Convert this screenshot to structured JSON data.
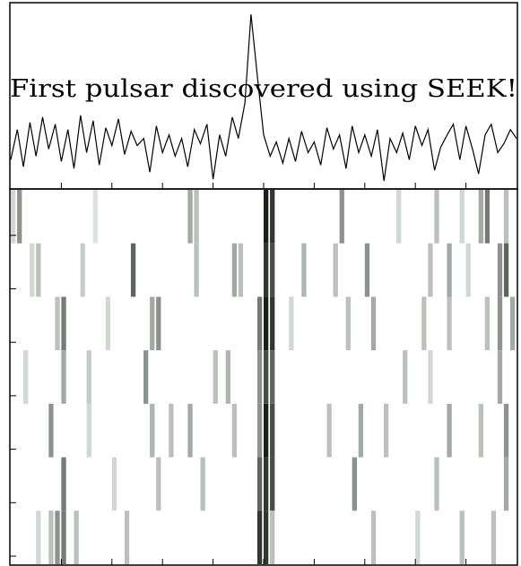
{
  "chart_data": [
    {
      "type": "line",
      "title": "First pulsar discovered using SEEK!",
      "xlabel": "",
      "ylabel": "",
      "xlim": [
        0,
        1
      ],
      "ylim": [
        0,
        1
      ],
      "x": [
        0.0,
        0.013,
        0.025,
        0.038,
        0.05,
        0.063,
        0.075,
        0.088,
        0.1,
        0.113,
        0.125,
        0.138,
        0.15,
        0.163,
        0.175,
        0.188,
        0.2,
        0.213,
        0.225,
        0.238,
        0.25,
        0.263,
        0.275,
        0.288,
        0.3,
        0.313,
        0.325,
        0.338,
        0.35,
        0.363,
        0.375,
        0.388,
        0.4,
        0.413,
        0.425,
        0.438,
        0.45,
        0.463,
        0.475,
        0.488,
        0.5,
        0.513,
        0.525,
        0.538,
        0.55,
        0.563,
        0.575,
        0.588,
        0.6,
        0.613,
        0.625,
        0.638,
        0.65,
        0.663,
        0.675,
        0.688,
        0.7,
        0.713,
        0.725,
        0.738,
        0.75,
        0.763,
        0.775,
        0.788,
        0.8,
        0.813,
        0.825,
        0.838,
        0.85,
        0.863,
        0.875,
        0.888,
        0.9,
        0.913,
        0.925,
        0.938,
        0.95,
        0.963,
        0.975,
        0.988,
        1.0
      ],
      "series": [
        {
          "name": "",
          "values": [
            0.16,
            0.33,
            0.12,
            0.37,
            0.18,
            0.4,
            0.22,
            0.36,
            0.15,
            0.33,
            0.11,
            0.41,
            0.2,
            0.38,
            0.13,
            0.34,
            0.24,
            0.39,
            0.19,
            0.32,
            0.24,
            0.28,
            0.09,
            0.35,
            0.2,
            0.3,
            0.18,
            0.28,
            0.12,
            0.33,
            0.25,
            0.36,
            0.05,
            0.3,
            0.18,
            0.4,
            0.28,
            0.48,
            0.98,
            0.62,
            0.3,
            0.18,
            0.26,
            0.14,
            0.28,
            0.15,
            0.32,
            0.2,
            0.26,
            0.13,
            0.34,
            0.22,
            0.3,
            0.11,
            0.35,
            0.2,
            0.3,
            0.18,
            0.33,
            0.04,
            0.28,
            0.2,
            0.31,
            0.16,
            0.35,
            0.24,
            0.33,
            0.1,
            0.23,
            0.3,
            0.36,
            0.16,
            0.35,
            0.22,
            0.08,
            0.3,
            0.36,
            0.2,
            0.25,
            0.33,
            0.28
          ]
        }
      ],
      "color": "#000000"
    },
    {
      "type": "heatmap",
      "title": "",
      "xlabel": "",
      "ylabel": "",
      "rows": 7,
      "columns": 80,
      "colormap": "white-to-black (grey), with faint green tint",
      "peak_column_fraction": 0.49,
      "values": [
        [
          0.2,
          0.5,
          0,
          0,
          0,
          0,
          0,
          0,
          0,
          0,
          0,
          0,
          0,
          0.15,
          0,
          0,
          0,
          0,
          0,
          0,
          0,
          0,
          0,
          0,
          0,
          0,
          0,
          0,
          0.4,
          0.3,
          0,
          0,
          0,
          0,
          0,
          0,
          0,
          0,
          0,
          0,
          1,
          0.9,
          0,
          0,
          0,
          0,
          0,
          0,
          0,
          0,
          0,
          0,
          0.5,
          0,
          0,
          0,
          0,
          0,
          0,
          0,
          0,
          0.2,
          0,
          0,
          0,
          0,
          0,
          0.3,
          0,
          0,
          0,
          0.2,
          0,
          0,
          0.4,
          0.6,
          0,
          0,
          0.3,
          0
        ],
        [
          0,
          0,
          0,
          0.2,
          0.3,
          0,
          0,
          0,
          0,
          0,
          0,
          0.25,
          0,
          0,
          0,
          0,
          0,
          0,
          0,
          0.7,
          0,
          0,
          0,
          0,
          0,
          0,
          0,
          0,
          0,
          0.3,
          0,
          0,
          0,
          0,
          0,
          0.4,
          0.3,
          0,
          0,
          0,
          0.9,
          0.8,
          0,
          0,
          0,
          0,
          0.35,
          0,
          0,
          0,
          0,
          0.3,
          0,
          0,
          0,
          0,
          0.5,
          0,
          0,
          0,
          0,
          0,
          0,
          0,
          0,
          0,
          0.3,
          0,
          0,
          0.4,
          0,
          0,
          0.2,
          0,
          0,
          0,
          0,
          0.5,
          0.7,
          0
        ],
        [
          0,
          0,
          0,
          0,
          0,
          0,
          0,
          0.3,
          0.6,
          0,
          0,
          0,
          0,
          0,
          0,
          0.2,
          0,
          0,
          0,
          0,
          0,
          0,
          0.4,
          0.5,
          0,
          0,
          0,
          0,
          0,
          0,
          0,
          0,
          0,
          0,
          0,
          0,
          0,
          0,
          0,
          0.6,
          1,
          0.9,
          0,
          0,
          0.2,
          0,
          0,
          0,
          0,
          0,
          0,
          0,
          0,
          0.3,
          0,
          0,
          0,
          0.4,
          0,
          0,
          0,
          0,
          0,
          0,
          0,
          0.3,
          0,
          0,
          0,
          0.3,
          0,
          0,
          0,
          0,
          0,
          0.3,
          0,
          0.5,
          0,
          0.4
        ],
        [
          0,
          0,
          0.2,
          0,
          0,
          0,
          0,
          0,
          0.4,
          0,
          0,
          0,
          0.25,
          0,
          0,
          0,
          0,
          0,
          0,
          0,
          0,
          0.5,
          0,
          0,
          0,
          0,
          0,
          0,
          0,
          0,
          0,
          0,
          0.3,
          0,
          0.35,
          0,
          0,
          0,
          0,
          0.5,
          0.8,
          0.7,
          0,
          0,
          0,
          0,
          0,
          0,
          0,
          0,
          0,
          0,
          0,
          0,
          0,
          0,
          0,
          0,
          0,
          0,
          0,
          0,
          0.3,
          0,
          0,
          0,
          0.2,
          0,
          0,
          0,
          0,
          0,
          0,
          0,
          0,
          0,
          0,
          0.4,
          0,
          0
        ],
        [
          0,
          0,
          0,
          0,
          0,
          0,
          0.5,
          0,
          0,
          0,
          0,
          0,
          0.2,
          0,
          0,
          0,
          0,
          0,
          0,
          0,
          0,
          0,
          0.35,
          0,
          0,
          0.3,
          0,
          0,
          0.4,
          0,
          0,
          0,
          0,
          0,
          0,
          0.3,
          0,
          0,
          0,
          0.5,
          1,
          0.8,
          0,
          0,
          0,
          0,
          0,
          0,
          0,
          0,
          0.3,
          0,
          0,
          0,
          0,
          0.4,
          0,
          0,
          0,
          0.3,
          0,
          0,
          0,
          0,
          0,
          0,
          0,
          0,
          0,
          0.4,
          0,
          0,
          0,
          0,
          0.3,
          0,
          0,
          0,
          0.5,
          0
        ],
        [
          0,
          0,
          0,
          0,
          0,
          0,
          0,
          0,
          0.6,
          0,
          0,
          0,
          0,
          0,
          0,
          0,
          0.2,
          0,
          0,
          0,
          0,
          0,
          0,
          0.3,
          0,
          0,
          0,
          0,
          0,
          0,
          0.3,
          0,
          0,
          0,
          0,
          0,
          0,
          0,
          0,
          0.7,
          0.9,
          0.8,
          0,
          0,
          0,
          0,
          0,
          0,
          0,
          0,
          0,
          0,
          0,
          0,
          0.5,
          0,
          0,
          0,
          0,
          0,
          0,
          0,
          0,
          0,
          0,
          0,
          0,
          0.3,
          0,
          0,
          0,
          0,
          0,
          0,
          0,
          0,
          0,
          0,
          0.4,
          0
        ],
        [
          0,
          0,
          0,
          0,
          0.2,
          0,
          0.3,
          0.5,
          0.6,
          0,
          0.3,
          0,
          0,
          0,
          0,
          0,
          0,
          0,
          0.3,
          0,
          0,
          0,
          0,
          0,
          0,
          0,
          0,
          0,
          0,
          0,
          0,
          0,
          0,
          0,
          0,
          0,
          0,
          0,
          0,
          0.9,
          0.9,
          0.3,
          0,
          0,
          0,
          0,
          0,
          0,
          0,
          0,
          0,
          0,
          0,
          0,
          0,
          0,
          0,
          0.3,
          0,
          0,
          0,
          0,
          0,
          0,
          0.2,
          0,
          0,
          0,
          0,
          0,
          0,
          0.3,
          0,
          0,
          0,
          0,
          0.3,
          0,
          0,
          0
        ]
      ]
    }
  ]
}
